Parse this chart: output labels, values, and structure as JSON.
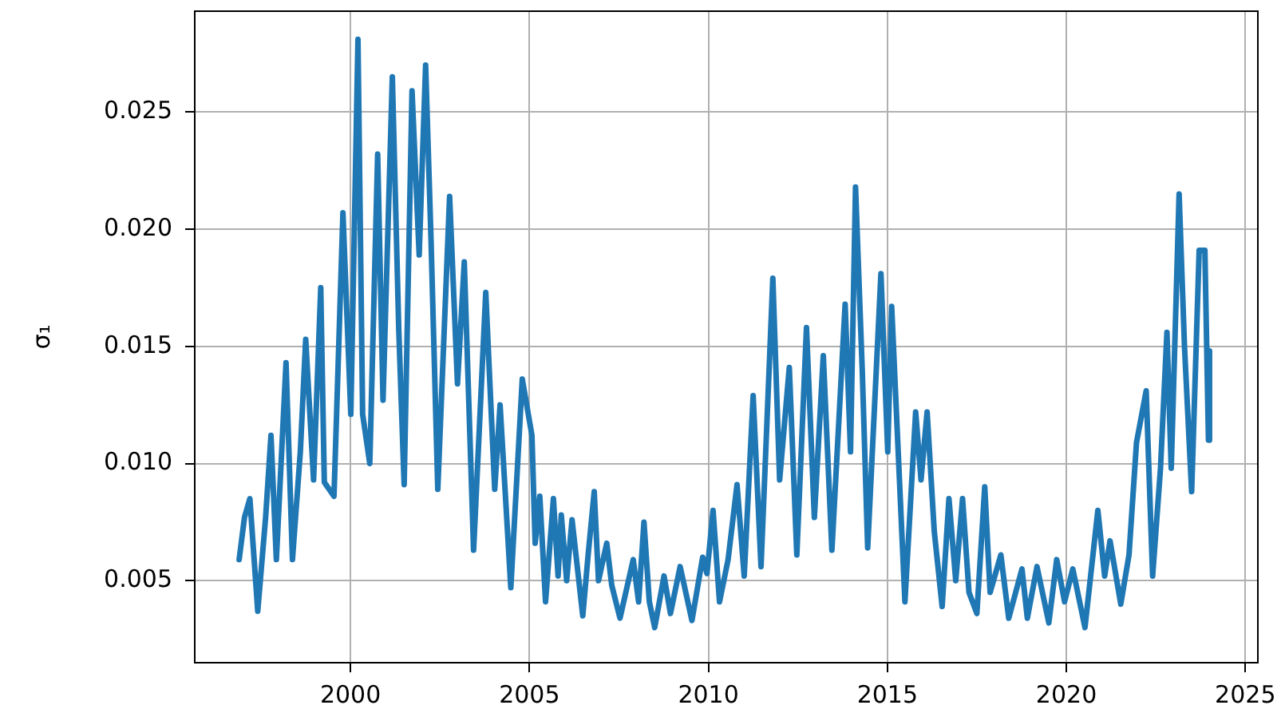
{
  "chart_data": {
    "type": "line",
    "ylabel": "σ₁",
    "color": "#1f77b4",
    "x": [
      1996.89,
      1997.04,
      1997.19,
      1997.41,
      1997.63,
      1997.78,
      1997.93,
      1998.2,
      1998.38,
      1998.6,
      1998.75,
      1998.97,
      1999.17,
      1999.27,
      1999.54,
      1999.79,
      2000.01,
      2000.21,
      2000.34,
      2000.54,
      2000.76,
      2000.91,
      2001.17,
      2001.35,
      2001.5,
      2001.72,
      2001.92,
      2002.1,
      2002.25,
      2002.44,
      2002.77,
      2002.99,
      2003.18,
      2003.44,
      2003.78,
      2004.03,
      2004.18,
      2004.48,
      2004.8,
      2005.07,
      2005.16,
      2005.29,
      2005.45,
      2005.67,
      2005.8,
      2005.89,
      2006.04,
      2006.19,
      2006.49,
      2006.64,
      2006.81,
      2006.93,
      2007.16,
      2007.3,
      2007.53,
      2007.9,
      2008.05,
      2008.2,
      2008.35,
      2008.5,
      2008.76,
      2008.94,
      2009.21,
      2009.54,
      2009.84,
      2009.96,
      2010.13,
      2010.31,
      2010.55,
      2010.8,
      2011.0,
      2011.25,
      2011.47,
      2011.8,
      2011.99,
      2012.26,
      2012.47,
      2012.74,
      2012.96,
      2013.21,
      2013.45,
      2013.82,
      2013.97,
      2014.11,
      2014.3,
      2014.45,
      2014.82,
      2015.01,
      2015.12,
      2015.49,
      2015.79,
      2015.94,
      2016.11,
      2016.31,
      2016.53,
      2016.72,
      2016.91,
      2017.1,
      2017.28,
      2017.5,
      2017.72,
      2017.87,
      2018.17,
      2018.39,
      2018.76,
      2018.91,
      2019.18,
      2019.51,
      2019.73,
      2019.95,
      2020.18,
      2020.52,
      2020.88,
      2021.07,
      2021.22,
      2021.52,
      2021.75,
      2021.96,
      2022.23,
      2022.41,
      2022.63,
      2022.81,
      2022.93,
      2023.15,
      2023.3,
      2023.5,
      2023.71,
      2023.87,
      2023.97,
      2024.0
    ],
    "values": [
      0.0059,
      0.0077,
      0.0085,
      0.0037,
      0.0077,
      0.0112,
      0.0059,
      0.0143,
      0.0059,
      0.0105,
      0.0153,
      0.0093,
      0.0175,
      0.0092,
      0.0086,
      0.0207,
      0.0121,
      0.0281,
      0.0121,
      0.01,
      0.0232,
      0.0127,
      0.0265,
      0.0157,
      0.0091,
      0.0259,
      0.0189,
      0.027,
      0.0196,
      0.0089,
      0.0214,
      0.0134,
      0.0186,
      0.0063,
      0.0173,
      0.0089,
      0.0125,
      0.0047,
      0.0136,
      0.0112,
      0.0066,
      0.0086,
      0.0041,
      0.0085,
      0.0052,
      0.0078,
      0.005,
      0.0076,
      0.0035,
      0.0061,
      0.0088,
      0.005,
      0.0066,
      0.0048,
      0.0034,
      0.0059,
      0.0041,
      0.0075,
      0.0041,
      0.003,
      0.0052,
      0.0036,
      0.0056,
      0.0033,
      0.006,
      0.0053,
      0.008,
      0.0041,
      0.0059,
      0.0091,
      0.0052,
      0.0129,
      0.0056,
      0.0179,
      0.0093,
      0.0141,
      0.0061,
      0.0158,
      0.0077,
      0.0146,
      0.0063,
      0.0168,
      0.0105,
      0.0218,
      0.0139,
      0.0064,
      0.0181,
      0.0105,
      0.0167,
      0.0041,
      0.0122,
      0.0093,
      0.0122,
      0.0071,
      0.0039,
      0.0085,
      0.005,
      0.0085,
      0.0045,
      0.0036,
      0.009,
      0.0045,
      0.0061,
      0.0034,
      0.0055,
      0.0034,
      0.0056,
      0.0032,
      0.0059,
      0.0041,
      0.0055,
      0.003,
      0.008,
      0.0052,
      0.0067,
      0.004,
      0.0061,
      0.0109,
      0.0131,
      0.0052,
      0.0098,
      0.0156,
      0.0098,
      0.0215,
      0.015,
      0.0088,
      0.0191,
      0.0191,
      0.011,
      0.0148
    ],
    "xlim": [
      1995.65,
      2025.35
    ],
    "ylim": [
      0.0015,
      0.0293
    ],
    "xticks": [
      2000,
      2005,
      2010,
      2015,
      2020,
      2025
    ],
    "yticks": [
      0.005,
      {
        "value": 0.01,
        "label": "0.010"
      },
      0.015,
      {
        "value": 0.02,
        "label": "0.020"
      },
      0.025
    ],
    "grid": true
  }
}
